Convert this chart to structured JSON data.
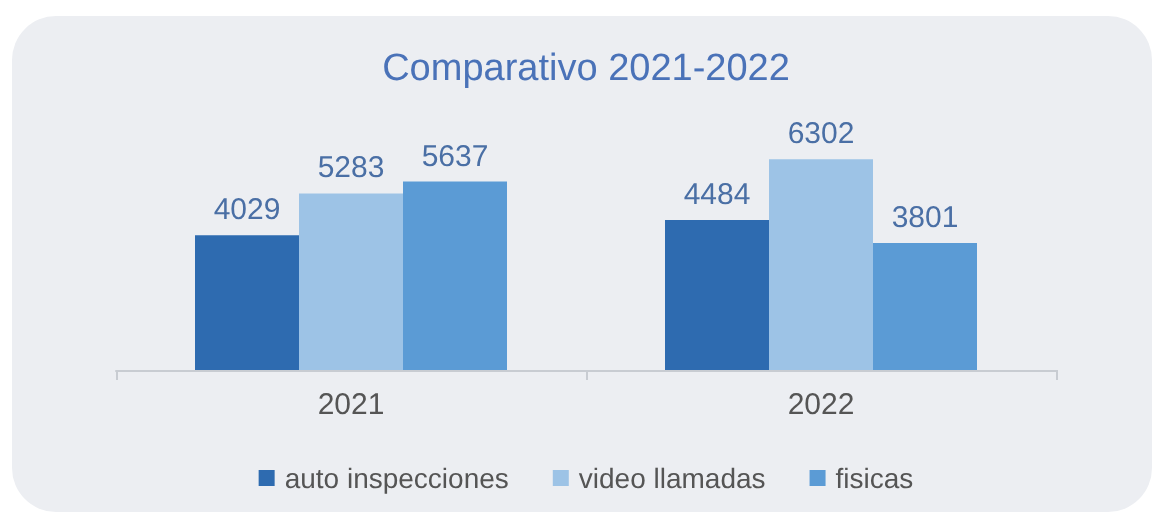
{
  "chart_data": {
    "type": "bar",
    "title": "Comparativo 2021-2022",
    "categories": [
      "2021",
      "2022"
    ],
    "series": [
      {
        "name": "auto inspecciones",
        "color": "#2e6bb0",
        "values": [
          4029,
          4484
        ]
      },
      {
        "name": "video llamadas",
        "color": "#9dc3e6",
        "values": [
          5283,
          6302
        ]
      },
      {
        "name": "fisicas",
        "color": "#5b9bd5",
        "values": [
          5637,
          3801
        ]
      }
    ],
    "data_labels": true,
    "legend": "bottom"
  }
}
